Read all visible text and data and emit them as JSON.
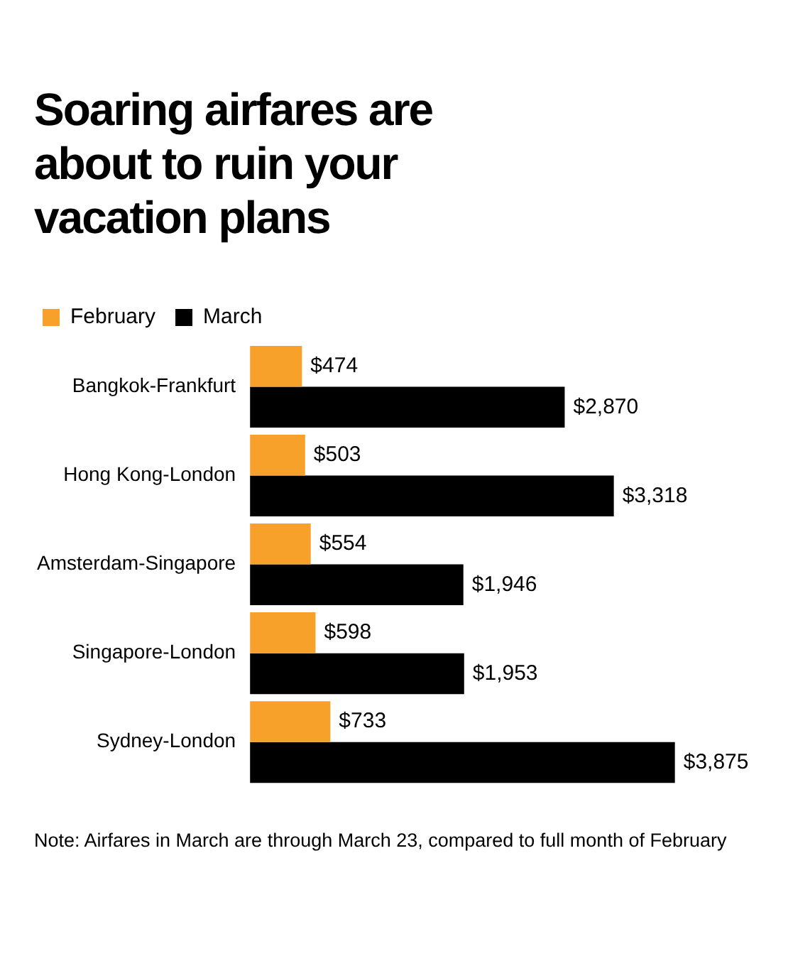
{
  "chart_data": {
    "type": "bar",
    "orientation": "horizontal",
    "title": "Soaring airfares are about to ruin your vacation plans",
    "categories": [
      "Bangkok-Frankfurt",
      "Hong Kong-London",
      "Amsterdam-Singapore",
      "Singapore-London",
      "Sydney-London"
    ],
    "series": [
      {
        "name": "February",
        "color": "#f7a12a",
        "values": [
          474,
          503,
          554,
          598,
          733
        ],
        "value_labels": [
          "$474",
          "$503",
          "$554",
          "$598",
          "$733"
        ]
      },
      {
        "name": "March",
        "color": "#000000",
        "values": [
          2870,
          3318,
          1946,
          1953,
          3875
        ],
        "value_labels": [
          "$2,870",
          "$3,318",
          "$1,946",
          "$1,953",
          "$3,875"
        ]
      }
    ],
    "legend": "top left",
    "annotations": [
      "Note: Airfares in March are through March 23, compared to full month of February"
    ]
  }
}
